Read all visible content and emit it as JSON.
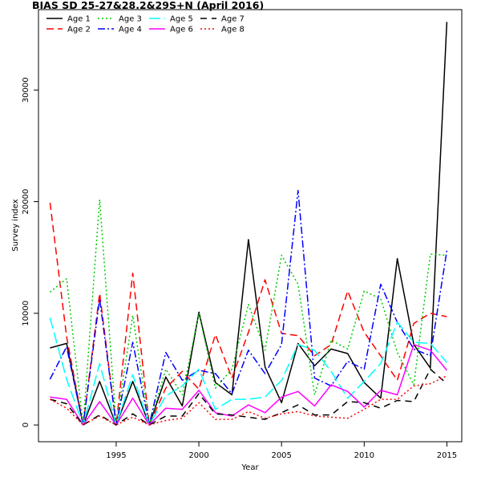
{
  "chart_data": {
    "type": "line",
    "title": "BIAS SD 25-27&28.2&29S+N (April 2016)",
    "xlabel": "Year",
    "ylabel": "Survey index",
    "xlim": [
      1990.3,
      2015.9
    ],
    "ylim": [
      -1500,
      37200
    ],
    "xticks": [
      1995,
      2000,
      2005,
      2010,
      2015
    ],
    "yticks": [
      0,
      10000,
      20000,
      30000
    ],
    "grid": false,
    "legend_position": "top-left",
    "x": [
      1991,
      1992,
      1993,
      1994,
      1995,
      1996,
      1997,
      1998,
      1999,
      2000,
      2001,
      2002,
      2003,
      2004,
      2005,
      2006,
      2007,
      2008,
      2009,
      2010,
      2011,
      2012,
      2013,
      2014,
      2015
    ],
    "series": [
      {
        "name": "Age 1",
        "color": "#000000",
        "dash": "solid",
        "values": [
          6900,
          7300,
          0,
          3900,
          0,
          3900,
          0,
          4300,
          1700,
          10100,
          3800,
          2700,
          16600,
          5200,
          2000,
          7300,
          5300,
          6800,
          6400,
          3800,
          2400,
          14900,
          7200,
          5100,
          36100
        ]
      },
      {
        "name": "Age 2",
        "color": "#ff0000",
        "dash": "9,5",
        "values": [
          19900,
          7900,
          0,
          11800,
          0,
          13600,
          0,
          3300,
          4800,
          3200,
          8100,
          4200,
          8300,
          13000,
          8200,
          8000,
          6200,
          7200,
          12000,
          8300,
          6200,
          4000,
          9100,
          10000,
          9700
        ]
      },
      {
        "name": "Age 3",
        "color": "#00cc00",
        "dash": "2,3",
        "values": [
          11900,
          13100,
          0,
          20200,
          0,
          9800,
          0,
          5000,
          2700,
          10000,
          3300,
          5000,
          10800,
          6700,
          15200,
          12600,
          2700,
          7600,
          6800,
          12000,
          11300,
          6500,
          3600,
          15300,
          15200
        ]
      },
      {
        "name": "Age 4",
        "color": "#0000ff",
        "dash": "9,3,2,3",
        "values": [
          4100,
          7000,
          0,
          11300,
          0,
          7400,
          0,
          6500,
          4000,
          4900,
          4600,
          2800,
          6700,
          4600,
          7200,
          21000,
          4200,
          3500,
          5700,
          5000,
          12600,
          9200,
          6800,
          6200,
          15600
        ]
      },
      {
        "name": "Age 5",
        "color": "#00ffff",
        "dash": "14,5",
        "values": [
          9600,
          4100,
          0,
          5500,
          0,
          4500,
          0,
          2600,
          3500,
          5000,
          1400,
          2300,
          2300,
          2500,
          4000,
          7200,
          6700,
          4800,
          2400,
          3900,
          5500,
          9200,
          7400,
          7300,
          5600
        ]
      },
      {
        "name": "Age 6",
        "color": "#ff00ff",
        "dash": "solid",
        "values": [
          2500,
          2300,
          0,
          2100,
          0,
          2400,
          0,
          1500,
          1400,
          3100,
          1100,
          800,
          1800,
          1100,
          2500,
          3000,
          1700,
          3600,
          3000,
          1600,
          3100,
          2700,
          7200,
          6700,
          4900
        ]
      },
      {
        "name": "Age 7",
        "color": "#000000",
        "dash": "8,6",
        "values": [
          2300,
          1900,
          0,
          900,
          0,
          1000,
          0,
          800,
          800,
          2800,
          1000,
          900,
          700,
          500,
          1100,
          1800,
          900,
          900,
          2100,
          2000,
          1500,
          2200,
          2100,
          5000,
          3700
        ]
      },
      {
        "name": "Age 8",
        "color": "#ff0000",
        "dash": "2,3",
        "values": [
          2300,
          1500,
          0,
          800,
          0,
          700,
          0,
          400,
          600,
          2000,
          500,
          500,
          1200,
          600,
          1000,
          1200,
          800,
          700,
          600,
          1400,
          2300,
          2300,
          3500,
          3700,
          4400
        ]
      }
    ]
  }
}
